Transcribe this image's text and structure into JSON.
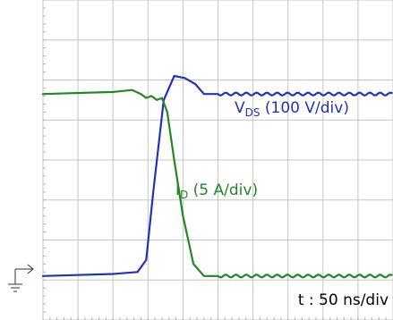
{
  "chart_data": {
    "type": "line",
    "title": "",
    "xlabel": "",
    "ylabel": "",
    "grid": true,
    "divisions": {
      "x": 10,
      "y": 8
    },
    "xlim": [
      0,
      10
    ],
    "ylim": [
      0,
      8
    ],
    "time_scale": "t : 50 ns/div",
    "ground_marker": "ground-reference-arrow",
    "series": [
      {
        "name": "VDS",
        "label_main": "V",
        "label_sub": "DS",
        "label_rest": " (100 V/div)",
        "color": "#2233bb",
        "x": [
          0,
          2.0,
          2.7,
          2.95,
          3.15,
          3.45,
          3.75,
          4.05,
          4.35,
          4.6,
          5.0,
          10
        ],
        "y": [
          1.1,
          1.15,
          1.2,
          1.5,
          3.2,
          5.5,
          6.1,
          6.05,
          5.9,
          5.65,
          5.65,
          5.65
        ]
      },
      {
        "name": "ID",
        "label_main": "I",
        "label_sub": "D",
        "label_rest": " (5 A/div)",
        "color": "#228822",
        "x": [
          0,
          2.0,
          2.55,
          2.8,
          2.95,
          3.1,
          3.25,
          3.4,
          3.55,
          3.75,
          4.0,
          4.3,
          4.6,
          5.0,
          10
        ],
        "y": [
          5.65,
          5.7,
          5.75,
          5.65,
          5.55,
          5.6,
          5.5,
          5.55,
          5.2,
          4.0,
          2.6,
          1.4,
          1.1,
          1.1,
          1.1
        ]
      }
    ]
  }
}
